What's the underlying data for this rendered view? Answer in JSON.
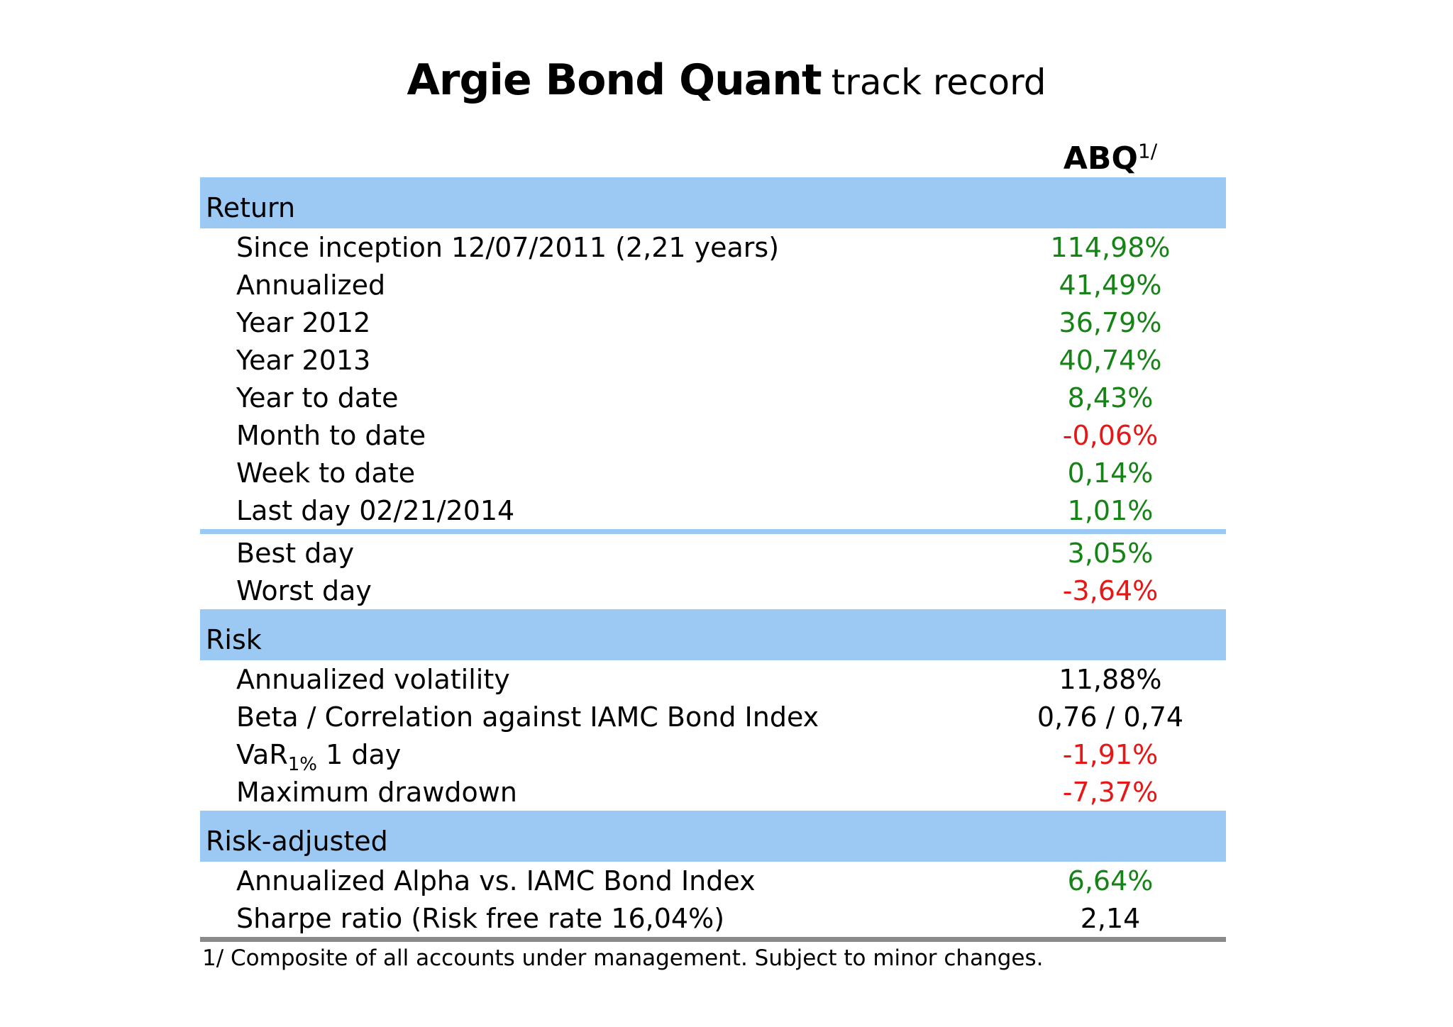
{
  "title": {
    "main": "Argie Bond Quant",
    "suffix": "track record"
  },
  "colors": {
    "positive": "#168316",
    "negative": "#e51717",
    "neutral": "#000000",
    "band_blue": "#9cc8f4",
    "separator_blue": "#9cc8f4",
    "bottom_rule_gray": "#8a8a8a"
  },
  "table": {
    "column_header": {
      "name": "ABQ",
      "footnote_marker": "1/"
    },
    "sections": [
      {
        "label": "Return",
        "rows": [
          {
            "label": "Since inception 12/07/2011 (2,21 years)",
            "value": "114,98%",
            "tone": "positive"
          },
          {
            "label": "Annualized",
            "value": "41,49%",
            "tone": "positive"
          },
          {
            "label": "Year 2012",
            "value": "36,79%",
            "tone": "positive"
          },
          {
            "label": "Year 2013",
            "value": "40,74%",
            "tone": "positive"
          },
          {
            "label": "Year to date",
            "value": "8,43%",
            "tone": "positive"
          },
          {
            "label": "Month to date",
            "value": "-0,06%",
            "tone": "negative"
          },
          {
            "label": "Week to date",
            "value": "0,14%",
            "tone": "positive"
          },
          {
            "label": "Last day 02/21/2014",
            "value": "1,01%",
            "tone": "positive",
            "separator_after": true
          },
          {
            "label": "Best day",
            "value": "3,05%",
            "tone": "positive"
          },
          {
            "label": "Worst day",
            "value": "-3,64%",
            "tone": "negative"
          }
        ]
      },
      {
        "label": "Risk",
        "rows": [
          {
            "label": "Annualized volatility",
            "value": "11,88%",
            "tone": "neutral"
          },
          {
            "label": "Beta / Correlation against IAMC Bond Index",
            "value": "0,76 / 0,74",
            "tone": "neutral"
          },
          {
            "label_parts": {
              "pre": "VaR",
              "sub": "1%",
              "post": " 1 day"
            },
            "value": "-1,91%",
            "tone": "negative"
          },
          {
            "label": "Maximum drawdown",
            "value": "-7,37%",
            "tone": "negative"
          }
        ]
      },
      {
        "label": "Risk-adjusted",
        "rows": [
          {
            "label": "Annualized Alpha vs. IAMC Bond Index",
            "value": "6,64%",
            "tone": "positive"
          },
          {
            "label": "Sharpe ratio (Risk free rate 16,04%)",
            "value": "2,14",
            "tone": "neutral"
          }
        ]
      }
    ]
  },
  "footnote": "1/ Composite of all accounts under management. Subject to minor changes."
}
